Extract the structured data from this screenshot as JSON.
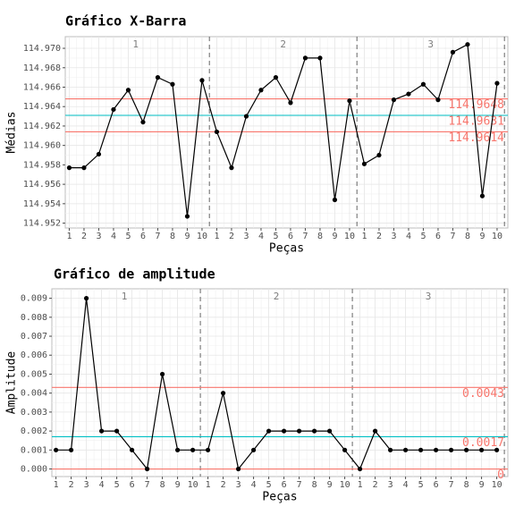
{
  "chart_data": [
    {
      "type": "line",
      "title": "Gráfico X-Barra",
      "xlabel": "Peças",
      "ylabel": "Médias",
      "categories": [
        "1",
        "2",
        "3",
        "4",
        "5",
        "6",
        "7",
        "8",
        "9",
        "10",
        "1",
        "2",
        "3",
        "4",
        "5",
        "6",
        "7",
        "8",
        "9",
        "10",
        "1",
        "2",
        "3",
        "4",
        "5",
        "6",
        "7",
        "8",
        "9",
        "10"
      ],
      "groups": [
        "1",
        "2",
        "3"
      ],
      "color": "#000000",
      "values": [
        114.9577,
        114.9577,
        114.9591,
        114.9637,
        114.9657,
        114.9624,
        114.967,
        114.9663,
        114.9527,
        114.9667,
        114.9614,
        114.9577,
        114.963,
        114.9657,
        114.967,
        114.9644,
        114.969,
        114.969,
        114.9544,
        114.9646,
        114.9581,
        114.959,
        114.9647,
        114.9653,
        114.9663,
        114.9647,
        114.9696,
        114.9704,
        114.9548,
        114.9664
      ],
      "hlines": [
        {
          "value": 114.9648,
          "color": "#f8766d"
        },
        {
          "value": 114.9631,
          "color": "#00bfc4"
        },
        {
          "value": 114.9614,
          "color": "#f8766d"
        }
      ],
      "ylim": [
        114.9515,
        114.9712
      ],
      "yticks": [
        114.952,
        114.954,
        114.956,
        114.958,
        {
          "value": 114.96,
          "label": "114.960"
        },
        114.962,
        114.964,
        114.966,
        114.968,
        {
          "value": 114.97,
          "label": "114.970"
        }
      ],
      "grid": true
    },
    {
      "type": "line",
      "title": "Gráfico de amplitude",
      "xlabel": "Peças",
      "ylabel": "Amplitude",
      "categories": [
        "1",
        "2",
        "3",
        "4",
        "5",
        "6",
        "7",
        "8",
        "9",
        "10",
        "1",
        "2",
        "3",
        "4",
        "5",
        "6",
        "7",
        "8",
        "9",
        "10",
        "1",
        "2",
        "3",
        "4",
        "5",
        "6",
        "7",
        "8",
        "9",
        "10"
      ],
      "groups": [
        "1",
        "2",
        "3"
      ],
      "color": "#000000",
      "values": [
        0.001,
        0.001,
        0.009,
        0.002,
        0.002,
        0.001,
        0,
        0.005,
        0.001,
        0.001,
        0.001,
        0.004,
        0,
        0.001,
        0.002,
        0.002,
        0.002,
        0.002,
        0.002,
        0.001,
        0,
        0.002,
        0.001,
        0.001,
        0.001,
        0.001,
        0.001,
        0.001,
        0.001,
        0.001
      ],
      "hlines": [
        {
          "value": 0.0043,
          "color": "#f8766d"
        },
        {
          "value": 0.0017,
          "color": "#00bfc4"
        },
        {
          "value": 0,
          "color": "#f8766d"
        }
      ],
      "ylim": [
        -0.0004,
        0.0095
      ],
      "yticks": [
        {
          "value": 0,
          "label": "0.000"
        },
        0.001,
        0.002,
        0.003,
        0.004,
        0.005,
        0.006,
        0.007,
        0.008,
        0.009
      ],
      "grid": true
    }
  ]
}
